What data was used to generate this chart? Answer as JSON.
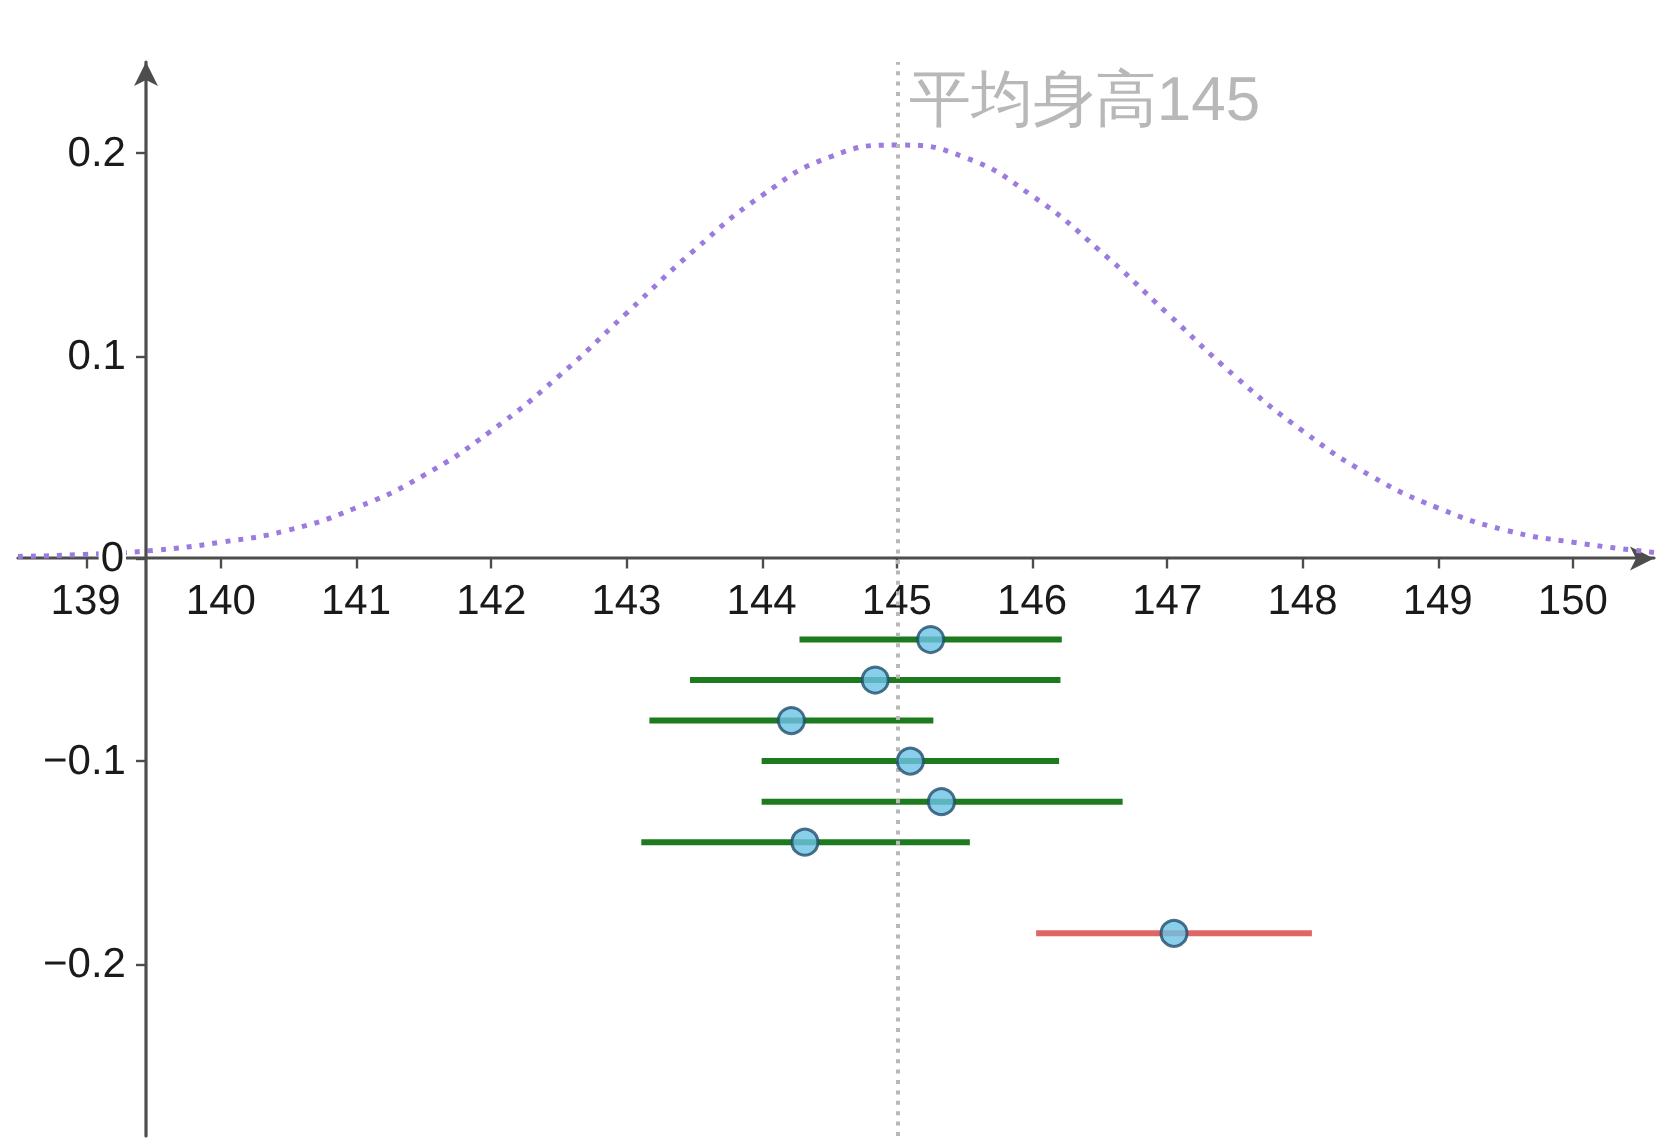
{
  "chart_data": {
    "type": "scatter",
    "xlim": [
      138.5,
      150.6
    ],
    "ylim": [
      -0.285,
      0.245
    ],
    "xticks": [
      139,
      140,
      141,
      142,
      143,
      144,
      145,
      146,
      147,
      148,
      149,
      150
    ],
    "yticks": [
      {
        "value": -0.2,
        "label": "−0.2"
      },
      {
        "value": -0.1,
        "label": "−0.1"
      },
      0,
      0.1,
      0.2
    ],
    "ref_lines": [
      {
        "axis": "x",
        "value": 145,
        "label": "平均身高145",
        "color": "#b8b8b8",
        "line_style": "dotted"
      }
    ],
    "series": [
      {
        "type": "line",
        "color": "#9b7be0",
        "line_style": "dotted",
        "marker": "none",
        "x": [
          138.5,
          139,
          139.5,
          140,
          140.5,
          141,
          141.5,
          142,
          142.5,
          143,
          143.5,
          144,
          144.5,
          145,
          145.5,
          146,
          146.5,
          147,
          147.5,
          148,
          148.5,
          149,
          149.5,
          150,
          150.6
        ],
        "values": [
          0.001,
          0.002,
          0.004,
          0.008,
          0.014,
          0.025,
          0.041,
          0.063,
          0.09,
          0.121,
          0.152,
          0.179,
          0.198,
          0.204,
          0.198,
          0.179,
          0.152,
          0.121,
          0.09,
          0.063,
          0.041,
          0.025,
          0.014,
          0.008,
          0.003
        ]
      },
      {
        "type": "scatter",
        "color": "#1e7a1e",
        "colors": [
          "#6cc3e6",
          "#6cc3e6",
          "#6cc3e6",
          "#6cc3e6",
          "#6cc3e6",
          "#6cc3e6"
        ],
        "marker": "circle",
        "x": [
          145.25,
          144.84,
          144.22,
          145.1,
          145.33,
          144.32
        ],
        "values": [
          -0.04,
          -0.06,
          -0.08,
          -0.1,
          -0.12,
          -0.14
        ],
        "xerrors": [
          [
            144.28,
            146.22
          ],
          [
            143.47,
            146.21
          ],
          [
            143.17,
            145.27
          ],
          [
            144.0,
            146.2
          ],
          [
            144.0,
            146.67
          ],
          [
            143.11,
            145.54
          ]
        ]
      },
      {
        "color": "#e06666",
        "colors": [
          "#6cc3e6"
        ],
        "marker": "circle",
        "x": [
          147.05
        ],
        "values": [
          -0.185
        ],
        "xerrors": [
          [
            146.03,
            148.07
          ]
        ]
      }
    ]
  }
}
